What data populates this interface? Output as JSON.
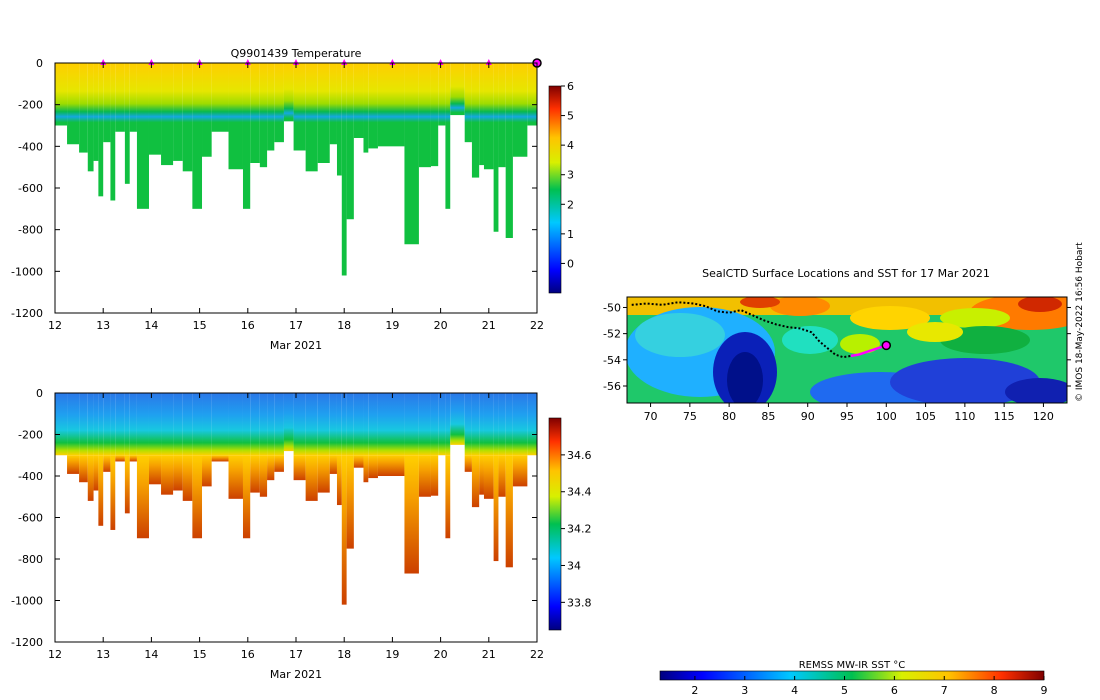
{
  "colors": {
    "background": "#ffffff",
    "marker_magenta": "#ff00ff",
    "track_black": "#000000"
  },
  "credit": "© IMOS 18-May-2022 16:56 Hobart",
  "chart_data": [
    {
      "id": "temperature",
      "type": "heatmap",
      "title": "Q9901439  Temperature",
      "xlabel": "Mar 2021",
      "ylabel": "",
      "xlim": [
        12,
        22
      ],
      "ylim": [
        -1200,
        0
      ],
      "xticks": [
        12,
        13,
        14,
        15,
        16,
        17,
        18,
        19,
        20,
        21,
        22
      ],
      "yticks": [
        0,
        -200,
        -400,
        -600,
        -800,
        -1000,
        -1200
      ],
      "colorbar": {
        "min": -1,
        "max": 6,
        "ticks": [
          0,
          1,
          2,
          3,
          4,
          5,
          6
        ],
        "colormap": "jet"
      },
      "surface_markers_day": [
        13,
        14,
        15,
        16,
        17,
        18,
        19,
        20,
        21
      ],
      "last_position_day": 22,
      "profiles": [
        {
          "start": 12.0,
          "end": 12.25,
          "depth": 300
        },
        {
          "start": 12.25,
          "end": 12.5,
          "depth": 390
        },
        {
          "start": 12.5,
          "end": 12.68,
          "depth": 430
        },
        {
          "start": 12.68,
          "end": 12.8,
          "depth": 520
        },
        {
          "start": 12.8,
          "end": 12.9,
          "depth": 470
        },
        {
          "start": 12.9,
          "end": 13.0,
          "depth": 640
        },
        {
          "start": 13.0,
          "end": 13.15,
          "depth": 380
        },
        {
          "start": 13.15,
          "end": 13.25,
          "depth": 660
        },
        {
          "start": 13.25,
          "end": 13.45,
          "depth": 330
        },
        {
          "start": 13.45,
          "end": 13.55,
          "depth": 580
        },
        {
          "start": 13.55,
          "end": 13.7,
          "depth": 330
        },
        {
          "start": 13.7,
          "end": 13.95,
          "depth": 700
        },
        {
          "start": 13.95,
          "end": 14.2,
          "depth": 440
        },
        {
          "start": 14.2,
          "end": 14.45,
          "depth": 490
        },
        {
          "start": 14.45,
          "end": 14.65,
          "depth": 470
        },
        {
          "start": 14.65,
          "end": 14.85,
          "depth": 520
        },
        {
          "start": 14.85,
          "end": 15.05,
          "depth": 700
        },
        {
          "start": 15.05,
          "end": 15.25,
          "depth": 450
        },
        {
          "start": 15.25,
          "end": 15.6,
          "depth": 330
        },
        {
          "start": 15.6,
          "end": 15.9,
          "depth": 510
        },
        {
          "start": 15.9,
          "end": 16.05,
          "depth": 700
        },
        {
          "start": 16.05,
          "end": 16.25,
          "depth": 480
        },
        {
          "start": 16.25,
          "end": 16.4,
          "depth": 500
        },
        {
          "start": 16.4,
          "end": 16.55,
          "depth": 420
        },
        {
          "start": 16.55,
          "end": 16.75,
          "depth": 380
        },
        {
          "start": 16.75,
          "end": 16.95,
          "depth": 280
        },
        {
          "start": 16.95,
          "end": 17.2,
          "depth": 420
        },
        {
          "start": 17.2,
          "end": 17.45,
          "depth": 520
        },
        {
          "start": 17.45,
          "end": 17.7,
          "depth": 480
        },
        {
          "start": 17.7,
          "end": 17.85,
          "depth": 390
        },
        {
          "start": 17.85,
          "end": 17.95,
          "depth": 540
        },
        {
          "start": 17.95,
          "end": 18.05,
          "depth": 1020
        },
        {
          "start": 18.05,
          "end": 18.2,
          "depth": 750
        },
        {
          "start": 18.2,
          "end": 18.4,
          "depth": 360
        },
        {
          "start": 18.4,
          "end": 18.5,
          "depth": 430
        },
        {
          "start": 18.5,
          "end": 18.7,
          "depth": 410
        },
        {
          "start": 18.7,
          "end": 19.25,
          "depth": 400
        },
        {
          "start": 19.25,
          "end": 19.55,
          "depth": 870
        },
        {
          "start": 19.55,
          "end": 19.8,
          "depth": 500
        },
        {
          "start": 19.8,
          "end": 19.95,
          "depth": 495
        },
        {
          "start": 19.95,
          "end": 20.1,
          "depth": 300
        },
        {
          "start": 20.1,
          "end": 20.2,
          "depth": 700
        },
        {
          "start": 20.2,
          "end": 20.5,
          "depth": 250
        },
        {
          "start": 20.5,
          "end": 20.65,
          "depth": 380
        },
        {
          "start": 20.65,
          "end": 20.8,
          "depth": 550
        },
        {
          "start": 20.8,
          "end": 20.9,
          "depth": 490
        },
        {
          "start": 20.9,
          "end": 21.1,
          "depth": 510
        },
        {
          "start": 21.1,
          "end": 21.2,
          "depth": 810
        },
        {
          "start": 21.2,
          "end": 21.35,
          "depth": 500
        },
        {
          "start": 21.35,
          "end": 21.5,
          "depth": 840
        },
        {
          "start": 21.5,
          "end": 21.8,
          "depth": 450
        },
        {
          "start": 21.8,
          "end": 22.0,
          "depth": 300
        }
      ]
    },
    {
      "id": "salinity",
      "type": "heatmap",
      "title": "",
      "xlabel": "Mar 2021",
      "ylabel": "",
      "xlim": [
        12,
        22
      ],
      "ylim": [
        -1200,
        0
      ],
      "xticks": [
        12,
        13,
        14,
        15,
        16,
        17,
        18,
        19,
        20,
        21,
        22
      ],
      "yticks": [
        0,
        -200,
        -400,
        -600,
        -800,
        -1000,
        -1200
      ],
      "colorbar": {
        "min": 33.65,
        "max": 34.8,
        "ticks": [
          33.8,
          34,
          34.2,
          34.4,
          34.6
        ],
        "colormap": "jet"
      }
    },
    {
      "id": "sst_map",
      "type": "heatmap",
      "title": "SealCTD Surface Locations and SST for 17 Mar 2021",
      "xlabel": "",
      "ylabel": "",
      "xlim": [
        67,
        123
      ],
      "ylim": [
        -57.3,
        -49.2
      ],
      "xticks": [
        70,
        75,
        80,
        85,
        90,
        95,
        100,
        105,
        110,
        115,
        120
      ],
      "yticks": [
        -50,
        -52,
        -54,
        -56
      ],
      "colorbar": {
        "label": "REMSS MW-IR SST °C",
        "min": 1.3,
        "max": 9,
        "ticks": [
          2,
          3,
          4,
          5,
          6,
          7,
          8,
          9
        ],
        "colormap": "jet"
      },
      "track": [
        [
          67.6,
          -49.8
        ],
        [
          69.5,
          -49.7
        ],
        [
          71.5,
          -49.8
        ],
        [
          73.5,
          -49.6
        ],
        [
          75.5,
          -49.7
        ],
        [
          77.0,
          -49.9
        ],
        [
          78.5,
          -50.3
        ],
        [
          80.0,
          -50.4
        ],
        [
          81.5,
          -50.2
        ],
        [
          83.0,
          -50.6
        ],
        [
          84.5,
          -51.0
        ],
        [
          86.0,
          -51.3
        ],
        [
          87.5,
          -51.5
        ],
        [
          89.0,
          -51.6
        ],
        [
          90.5,
          -51.9
        ],
        [
          91.5,
          -52.6
        ],
        [
          92.5,
          -53.1
        ],
        [
          93.5,
          -53.6
        ],
        [
          94.5,
          -53.8
        ],
        [
          95.5,
          -53.7
        ]
      ],
      "recent_track": [
        [
          95.5,
          -53.7
        ],
        [
          96.5,
          -53.6
        ],
        [
          97.5,
          -53.4
        ],
        [
          98.5,
          -53.2
        ],
        [
          99.5,
          -53.0
        ],
        [
          100.0,
          -52.9
        ]
      ],
      "last_position": [
        100.0,
        -52.9
      ]
    }
  ]
}
